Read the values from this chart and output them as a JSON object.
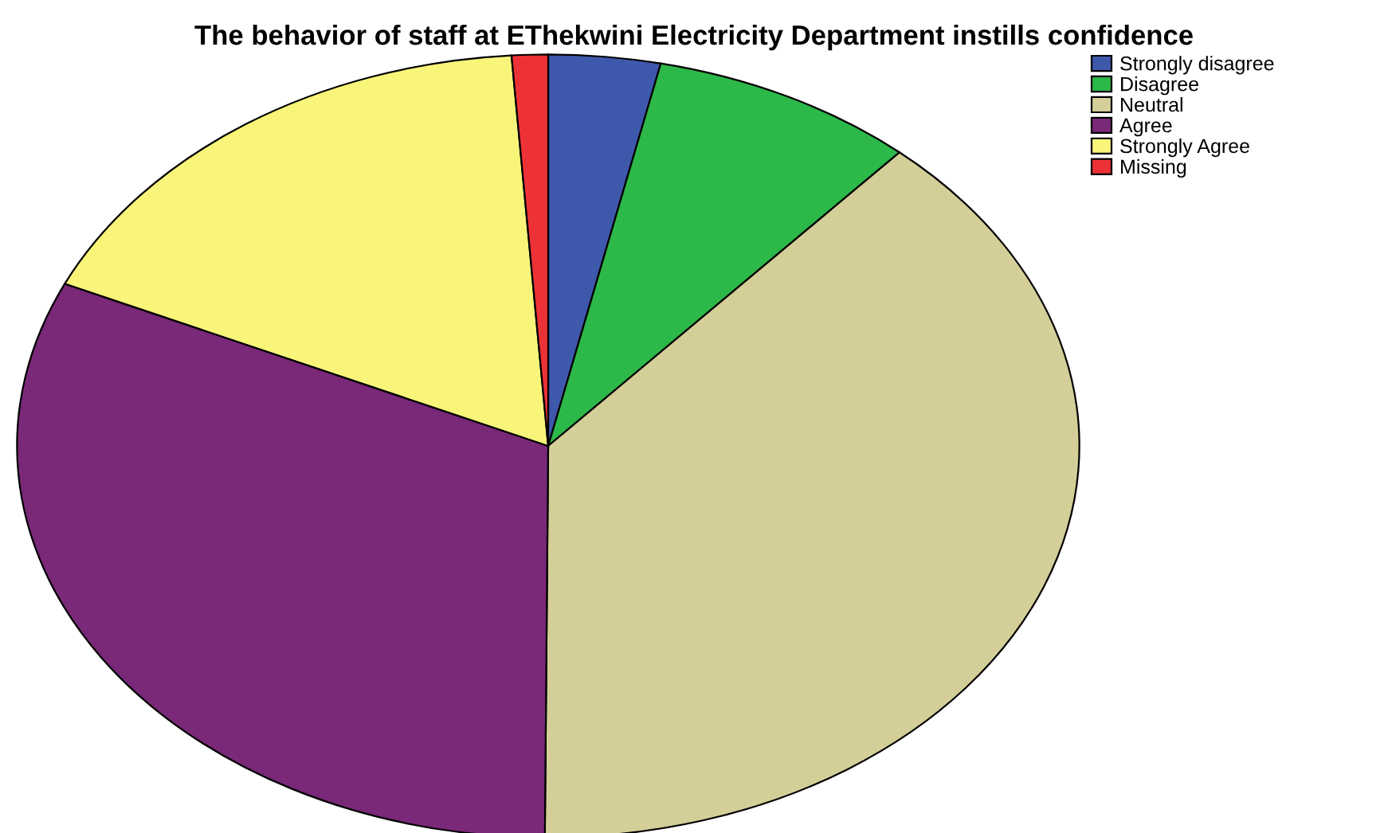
{
  "chart_data": {
    "type": "pie",
    "title": "The behavior of staff at EThekwini Electricity Department instills confidence",
    "categories": [
      "Strongly disagree",
      "Disagree",
      "Neutral",
      "Agree",
      "Strongly Agree",
      "Missing"
    ],
    "values": [
      3.4,
      8.1,
      38.6,
      31.7,
      17.1,
      1.1
    ],
    "colors": [
      "#3e58ac",
      "#2db84a",
      "#d4cf98",
      "#7a2878",
      "#f9f57a",
      "#ed3237"
    ],
    "legend": "top right"
  }
}
